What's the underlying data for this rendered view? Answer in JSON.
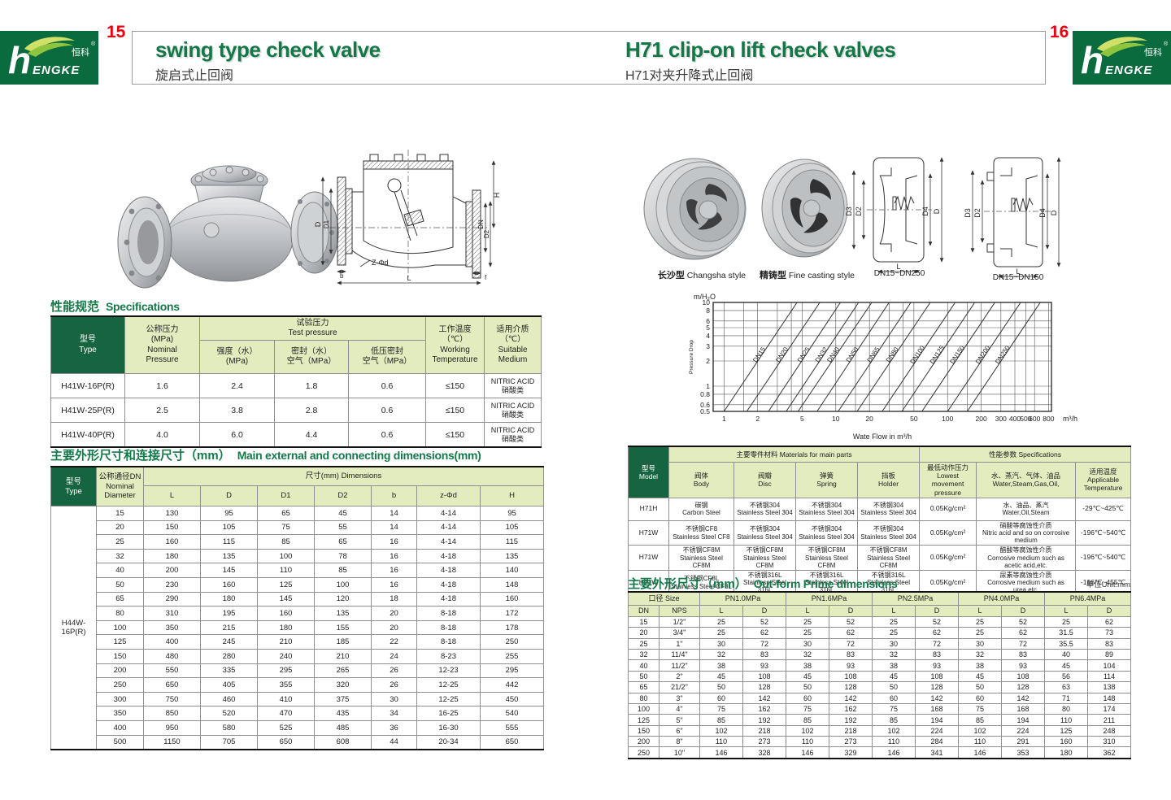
{
  "brand": {
    "cn": "恒科",
    "en": "hENGKE",
    "reg": "®"
  },
  "pages": {
    "left": {
      "num": "15",
      "title": "swing type check valve",
      "subtitle": "旋启式止回阀",
      "sections": {
        "spec_cn": "性能规范",
        "spec_en": "Specifications",
        "dim_cn": "主要外形尺寸和连接尺寸（mm）",
        "dim_en": "Main external and connecting dimensions(mm)"
      },
      "spec_table": {
        "h_type": "型号\nType",
        "h_nominal": "公称压力\n(MPa)\nNominal\nPressure",
        "h_test": "试验压力\nTest pressure",
        "h_strength": "强度（水）\n(MPa)",
        "h_seal": "密封（水）\n空气（MPa）",
        "h_lowseal": "低压密封\n空气（MPa）",
        "h_temp": "工作温度（℃）\nWorking\nTemperature",
        "h_medium": "适用介质（℃）\nSuitable\nMedium",
        "rows": [
          [
            "H41W-16P(R)",
            "1.6",
            "2.4",
            "1.8",
            "0.6",
            "≤150",
            "NITRIC ACID\n硝酸类"
          ],
          [
            "H41W-25P(R)",
            "2.5",
            "3.8",
            "2.8",
            "0.6",
            "≤150",
            "NITRIC ACID\n硝酸类"
          ],
          [
            "H41W-40P(R)",
            "4.0",
            "6.0",
            "4.4",
            "0.6",
            "≤150",
            "NITRIC ACID\n硝酸类"
          ]
        ]
      },
      "dim_table": {
        "h_type": "型号\nType",
        "h_dn": "公称通径DN\nNominal\nDiameter",
        "h_dims": "尺寸(mm) Dimensions",
        "cols": [
          "L",
          "D",
          "D1",
          "D2",
          "b",
          "z-Φd",
          "H"
        ],
        "type_label": "H44W-16P(R)",
        "rows": [
          [
            "15",
            "130",
            "95",
            "65",
            "45",
            "14",
            "4-14",
            "95"
          ],
          [
            "20",
            "150",
            "105",
            "75",
            "55",
            "14",
            "4-14",
            "105"
          ],
          [
            "25",
            "160",
            "115",
            "85",
            "65",
            "16",
            "4-14",
            "115"
          ],
          [
            "32",
            "180",
            "135",
            "100",
            "78",
            "16",
            "4-18",
            "135"
          ],
          [
            "40",
            "200",
            "145",
            "110",
            "85",
            "16",
            "4-18",
            "140"
          ],
          [
            "50",
            "230",
            "160",
            "125",
            "100",
            "16",
            "4-18",
            "148"
          ],
          [
            "65",
            "290",
            "180",
            "145",
            "120",
            "18",
            "4-18",
            "160"
          ],
          [
            "80",
            "310",
            "195",
            "160",
            "135",
            "20",
            "8-18",
            "172"
          ],
          [
            "100",
            "350",
            "215",
            "180",
            "155",
            "20",
            "8-18",
            "178"
          ],
          [
            "125",
            "400",
            "245",
            "210",
            "185",
            "22",
            "8-18",
            "250"
          ],
          [
            "150",
            "480",
            "280",
            "240",
            "210",
            "24",
            "8-23",
            "255"
          ],
          [
            "200",
            "550",
            "335",
            "295",
            "265",
            "26",
            "12-23",
            "295"
          ],
          [
            "250",
            "650",
            "405",
            "355",
            "320",
            "26",
            "12-25",
            "442"
          ],
          [
            "300",
            "750",
            "460",
            "410",
            "375",
            "30",
            "12-25",
            "450"
          ],
          [
            "350",
            "850",
            "520",
            "470",
            "435",
            "34",
            "16-25",
            "540"
          ],
          [
            "400",
            "950",
            "580",
            "525",
            "485",
            "36",
            "16-30",
            "555"
          ],
          [
            "500",
            "1150",
            "705",
            "650",
            "608",
            "44",
            "20-34",
            "650"
          ]
        ]
      },
      "drawing_labels": {
        "d": "D",
        "d1": "D1",
        "h": "H",
        "dn": "DN",
        "d2": "D2",
        "zd": "Z-Φd",
        "b": "b",
        "l": "L",
        "f": "f"
      }
    },
    "right": {
      "num": "16",
      "title": "H71 clip-on lift check valves",
      "subtitle": "H71对夹升降式止回阀",
      "captions": {
        "photo1_cn": "长沙型",
        "photo1_en": "Changsha style",
        "photo2_cn": "精铸型",
        "photo2_en": "Fine casting style",
        "drawing1": "DN15~DN250",
        "drawing2": "DN15~DN150"
      },
      "drawing_labels": {
        "d3": "D3",
        "d2": "D2",
        "d4": "D4",
        "d": "D",
        "l": "L"
      },
      "materials_table": {
        "h_model": "型号\nModel",
        "h_materials": "主要零件材料 Materials for main parts",
        "h_body": "阀体\nBody",
        "h_disc": "阀瓣\nDisc",
        "h_spring": "弹簧\nSpring",
        "h_holder": "挡板\nHolder",
        "h_spec": "性能参数 Specifications",
        "h_pressure": "最低动作压力\nLowest movement\npressure",
        "h_medium": "水、蒸汽、气体、油品\nWater,Steam,Gas,Oil,",
        "h_temp": "适用温度\nApplicable\nTemperature",
        "rows": [
          [
            "H71H",
            "碳钢\nCarbon Steel",
            "不锈钢304\nStainless Steel 304",
            "不锈钢304\nStainless Steel 304",
            "不锈钢304\nStainless Steel 304",
            "0.05Kg/cm²",
            "水、油品、蒸汽\nWater,Oil,Steam",
            "-29℃~425℃"
          ],
          [
            "H71W",
            "不锈钢CF8\nStainless Steel CF8",
            "不锈钢304\nStainless Steel 304",
            "不锈钢304\nStainless Steel 304",
            "不锈钢304\nStainless Steel 304",
            "0.05Kg/cm²",
            "硝酸等腐蚀性介质\nNitric acid and so on corrosive medium",
            "-196℃~540℃"
          ],
          [
            "H71W",
            "不锈钢CF8M\nStainless Steel CF8M",
            "不锈钢CF8M\nStainless Steel CF8M",
            "不锈钢CF8M\nStainless Steel CF8M",
            "不锈钢CF8M\nStainless Steel CF8M",
            "0.05Kg/cm²",
            "醋酸等腐蚀性介质\nCorrosive medium such as acetic acid,etc.",
            "-196℃~540℃"
          ],
          [
            "H71W",
            "不锈钢CF8L\nStainless Steel CF8L",
            "不锈钢316L\nStainless Steel 316L",
            "不锈钢316L\nStainless Steel 316L",
            "不锈钢316L\nStainless Steel 316L",
            "0.05Kg/cm²",
            "尿素等腐蚀性介质\nCorrosive medium such as urea,etc.",
            "-196℃~455℃"
          ]
        ]
      },
      "outform": {
        "title_cn": "主要外形尺寸（mm）",
        "title_en": "Out-form Prime dimensions",
        "unit": "单位Unit:mm",
        "h_size": "口径 Size",
        "h_dn": "DN",
        "h_nps": "NPS",
        "pn_groups": [
          "PN1.0MPa",
          "PN1.6MPa",
          "PN2.5MPa",
          "PN4.0MPa",
          "PN6.4MPa"
        ],
        "h_l": "L",
        "h_d": "D",
        "rows": [
          [
            "15",
            "1/2\"",
            "25",
            "52",
            "25",
            "52",
            "25",
            "52",
            "25",
            "52",
            "25",
            "62"
          ],
          [
            "20",
            "3/4\"",
            "25",
            "62",
            "25",
            "62",
            "25",
            "62",
            "25",
            "62",
            "31.5",
            "73"
          ],
          [
            "25",
            "1\"",
            "30",
            "72",
            "30",
            "72",
            "30",
            "72",
            "30",
            "72",
            "35.5",
            "83"
          ],
          [
            "32",
            "11/4\"",
            "32",
            "83",
            "32",
            "83",
            "32",
            "83",
            "32",
            "83",
            "40",
            "89"
          ],
          [
            "40",
            "11/2\"",
            "38",
            "93",
            "38",
            "93",
            "38",
            "93",
            "38",
            "93",
            "45",
            "104"
          ],
          [
            "50",
            "2\"",
            "45",
            "108",
            "45",
            "108",
            "45",
            "108",
            "45",
            "108",
            "56",
            "114"
          ],
          [
            "65",
            "21/2\"",
            "50",
            "128",
            "50",
            "128",
            "50",
            "128",
            "50",
            "128",
            "63",
            "138"
          ],
          [
            "80",
            "3\"",
            "60",
            "142",
            "60",
            "142",
            "60",
            "142",
            "60",
            "142",
            "71",
            "148"
          ],
          [
            "100",
            "4\"",
            "75",
            "162",
            "75",
            "162",
            "75",
            "168",
            "75",
            "168",
            "80",
            "174"
          ],
          [
            "125",
            "5\"",
            "85",
            "192",
            "85",
            "192",
            "85",
            "194",
            "85",
            "194",
            "110",
            "211"
          ],
          [
            "150",
            "6\"",
            "102",
            "218",
            "102",
            "218",
            "102",
            "224",
            "102",
            "224",
            "125",
            "248"
          ],
          [
            "200",
            "8\"",
            "110",
            "273",
            "110",
            "273",
            "110",
            "284",
            "110",
            "291",
            "160",
            "310"
          ],
          [
            "250",
            "10\"",
            "146",
            "328",
            "146",
            "329",
            "146",
            "341",
            "146",
            "353",
            "180",
            "362"
          ]
        ]
      }
    }
  },
  "chart_data": {
    "type": "line",
    "title": "",
    "ylabel_unit": "m/H₂O",
    "ylabel": "Pressure Drop",
    "xlabel": "Wate Flow in m³/h",
    "x_unit": "m³/h",
    "x_scale": "log",
    "y_scale": "log",
    "xlim": [
      0.8,
      850
    ],
    "ylim": [
      0.5,
      10
    ],
    "x_ticks": [
      1,
      2,
      5,
      10,
      20,
      50,
      100,
      200,
      300,
      400,
      500,
      600,
      800
    ],
    "y_ticks": [
      0.5,
      0.6,
      0.8,
      1,
      2,
      3,
      4,
      5,
      6,
      8,
      10
    ],
    "x_grid": [
      1,
      1.5,
      2,
      3,
      4,
      5,
      10,
      15,
      20,
      30,
      40,
      50,
      100,
      150,
      200,
      300,
      400,
      500,
      600,
      800
    ],
    "grid": true,
    "legend": "labels-on-lines",
    "series": [
      {
        "name": "DN15",
        "x_at_ymin": 1.0,
        "x_at_ymax": 4.5
      },
      {
        "name": "DN20",
        "x_at_ymin": 1.6,
        "x_at_ymax": 7.2
      },
      {
        "name": "DN25",
        "x_at_ymin": 2.5,
        "x_at_ymax": 11
      },
      {
        "name": "DN32",
        "x_at_ymin": 3.6,
        "x_at_ymax": 16
      },
      {
        "name": "DN40",
        "x_at_ymin": 4.6,
        "x_at_ymax": 21
      },
      {
        "name": "DN50",
        "x_at_ymin": 6.8,
        "x_at_ymax": 30
      },
      {
        "name": "DN65",
        "x_at_ymin": 10.5,
        "x_at_ymax": 47
      },
      {
        "name": "DN80",
        "x_at_ymin": 15.5,
        "x_at_ymax": 70
      },
      {
        "name": "DN100",
        "x_at_ymin": 26,
        "x_at_ymax": 117
      },
      {
        "name": "DN125",
        "x_at_ymin": 39,
        "x_at_ymax": 175
      },
      {
        "name": "DN150",
        "x_at_ymin": 59,
        "x_at_ymax": 265
      },
      {
        "name": "DN200",
        "x_at_ymin": 100,
        "x_at_ymax": 450
      },
      {
        "name": "DN250",
        "x_at_ymin": 150,
        "x_at_ymax": 675
      }
    ]
  }
}
